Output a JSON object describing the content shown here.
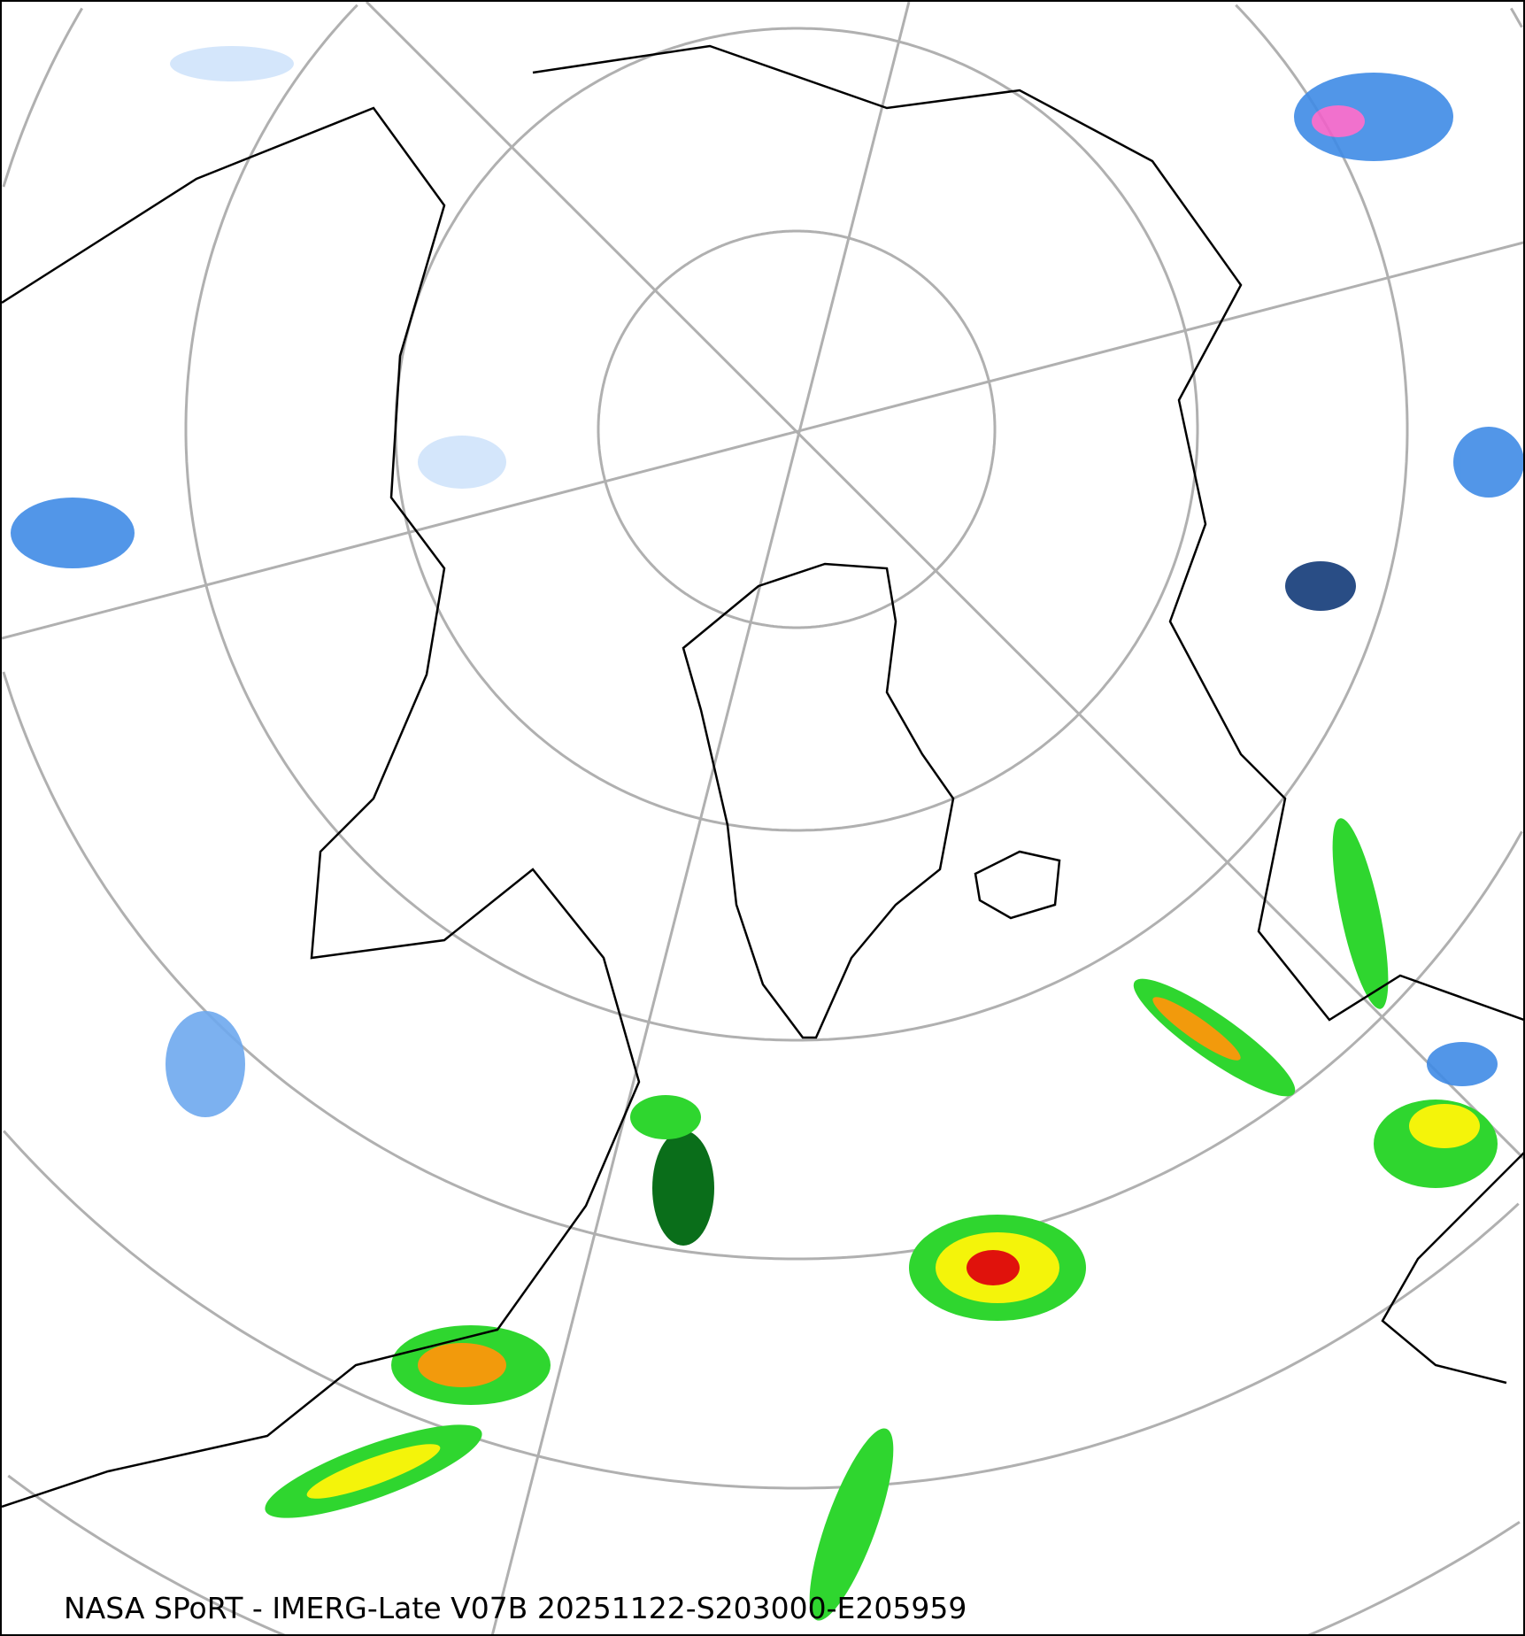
{
  "caption": "NASA SPoRT - IMERG-Late V07B 20251122-S203000-E205959",
  "projection": "north-polar-stereographic",
  "colors": {
    "graticule": "#b0b0b0",
    "coastline": "#000000",
    "precip_light_blue": "#cfe3fb",
    "precip_blue": "#3f8be6",
    "precip_dark_blue": "#123a78",
    "precip_pink": "#f062c8",
    "precip_dark_green": "#0a6e1a",
    "precip_green": "#2fd62f",
    "precip_yellow": "#f4f40a",
    "precip_orange": "#f29a0c",
    "precip_red": "#e0120c"
  }
}
